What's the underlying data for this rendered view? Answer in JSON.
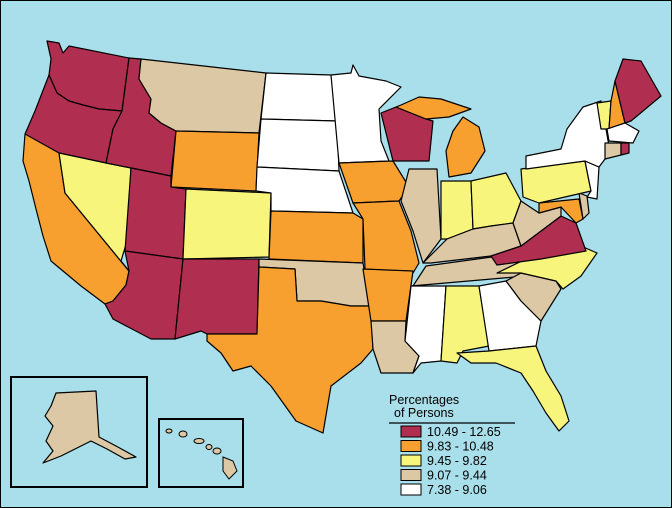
{
  "legend": {
    "title_line1": "Percentages",
    "title_line2": "of Persons",
    "classes": [
      {
        "label": "10.49 - 12.65",
        "color": "#b02e50"
      },
      {
        "label": "9.83 - 10.48",
        "color": "#f7a030"
      },
      {
        "label": "9.45 - 9.82",
        "color": "#f8f57c"
      },
      {
        "label": "9.07 - 9.44",
        "color": "#dcc8a4"
      },
      {
        "label": "7.38 - 9.06",
        "color": "#ffffff"
      }
    ]
  },
  "colors": {
    "ocean": "#a9dfea",
    "c1": "#b02e50",
    "c2": "#f7a030",
    "c3": "#f8f57c",
    "c4": "#dcc8a4",
    "c5": "#ffffff"
  }
}
